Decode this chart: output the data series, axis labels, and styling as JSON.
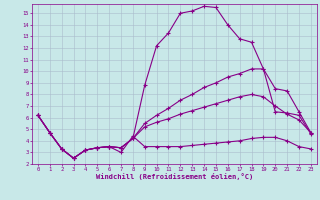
{
  "xlabel": "Windchill (Refroidissement éolien,°C)",
  "background_color": "#c8e8e8",
  "line_color": "#880088",
  "grid_color": "#aabccc",
  "xlim": [
    -0.5,
    23.5
  ],
  "ylim": [
    2,
    15.8
  ],
  "xticks": [
    0,
    1,
    2,
    3,
    4,
    5,
    6,
    7,
    8,
    9,
    10,
    11,
    12,
    13,
    14,
    15,
    16,
    17,
    18,
    19,
    20,
    21,
    22,
    23
  ],
  "yticks": [
    2,
    3,
    4,
    5,
    6,
    7,
    8,
    9,
    10,
    11,
    12,
    13,
    14,
    15
  ],
  "line1_x": [
    0,
    1,
    2,
    3,
    4,
    5,
    6,
    7,
    8,
    9,
    10,
    11,
    12,
    13,
    14,
    15,
    16,
    17,
    18,
    19,
    20,
    21,
    22,
    23
  ],
  "line1_y": [
    6.2,
    4.7,
    3.3,
    2.5,
    3.2,
    3.4,
    3.5,
    3.4,
    4.2,
    8.8,
    12.2,
    13.3,
    15.0,
    15.2,
    15.6,
    15.5,
    14.0,
    12.8,
    12.5,
    10.2,
    6.5,
    6.4,
    6.2,
    4.6
  ],
  "line2_x": [
    0,
    1,
    2,
    3,
    4,
    5,
    6,
    7,
    8,
    9,
    10,
    11,
    12,
    13,
    14,
    15,
    16,
    17,
    18,
    19,
    20,
    21,
    22,
    23
  ],
  "line2_y": [
    6.2,
    4.7,
    3.3,
    2.5,
    3.2,
    3.4,
    3.5,
    3.4,
    4.2,
    5.5,
    6.2,
    6.8,
    7.5,
    8.0,
    8.6,
    9.0,
    9.5,
    9.8,
    10.2,
    10.2,
    8.5,
    8.3,
    6.5,
    4.7
  ],
  "line3_x": [
    0,
    1,
    2,
    3,
    4,
    5,
    6,
    7,
    8,
    9,
    10,
    11,
    12,
    13,
    14,
    15,
    16,
    17,
    18,
    19,
    20,
    21,
    22,
    23
  ],
  "line3_y": [
    6.2,
    4.7,
    3.3,
    2.5,
    3.2,
    3.4,
    3.5,
    3.4,
    4.2,
    5.2,
    5.6,
    5.9,
    6.3,
    6.6,
    6.9,
    7.2,
    7.5,
    7.8,
    8.0,
    7.8,
    7.0,
    6.3,
    5.8,
    4.7
  ],
  "line4_x": [
    0,
    1,
    2,
    3,
    4,
    5,
    6,
    7,
    8,
    9,
    10,
    11,
    12,
    13,
    14,
    15,
    16,
    17,
    18,
    19,
    20,
    21,
    22,
    23
  ],
  "line4_y": [
    6.2,
    4.7,
    3.3,
    2.5,
    3.2,
    3.4,
    3.5,
    3.0,
    4.4,
    3.5,
    3.5,
    3.5,
    3.5,
    3.6,
    3.7,
    3.8,
    3.9,
    4.0,
    4.2,
    4.3,
    4.3,
    4.0,
    3.5,
    3.3
  ]
}
